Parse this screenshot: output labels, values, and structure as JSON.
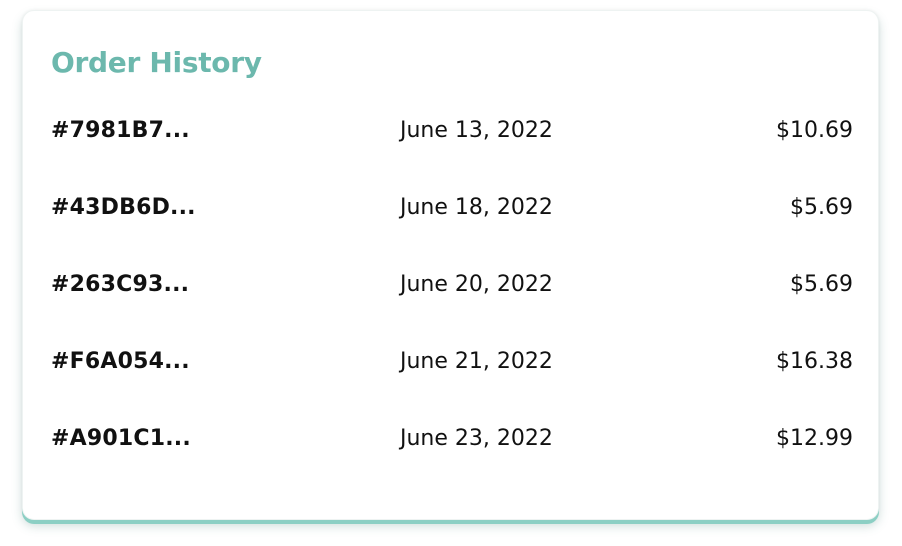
{
  "order_history": {
    "title": "Order History",
    "orders": [
      {
        "id": "#7981B7...",
        "date": "June 13, 2022",
        "total": "$10.69"
      },
      {
        "id": "#43DB6D...",
        "date": "June 18, 2022",
        "total": "$5.69"
      },
      {
        "id": "#263C93...",
        "date": "June 20, 2022",
        "total": "$5.69"
      },
      {
        "id": "#F6A054...",
        "date": "June 21, 2022",
        "total": "$16.38"
      },
      {
        "id": "#A901C1...",
        "date": "June 23, 2022",
        "total": "$12.99"
      }
    ]
  },
  "colors": {
    "accent": "#6cb8ad",
    "text": "#111111",
    "card_shadow": "#8ccfc4"
  }
}
